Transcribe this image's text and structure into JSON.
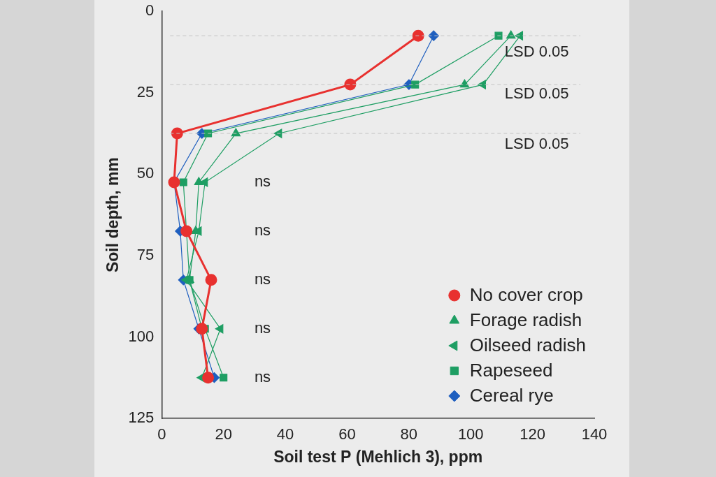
{
  "chart_data": {
    "type": "line",
    "x_label": "Soil test P (Mehlich 3), ppm",
    "y_label": "Soil depth, mm",
    "xlim": [
      0,
      140
    ],
    "xticks": [
      0,
      20,
      40,
      60,
      80,
      100,
      120,
      140
    ],
    "ylim": [
      0,
      125
    ],
    "yticks": [
      0,
      25,
      50,
      75,
      100,
      125
    ],
    "y_reversed": true,
    "grid": false,
    "legend": "lower right",
    "y": [
      7.5,
      22.5,
      37.5,
      52.5,
      67.5,
      82.5,
      97.5,
      112.5
    ],
    "series": [
      {
        "name": "No cover crop",
        "color": "#e8312f",
        "marker": "circle",
        "values": [
          83,
          61,
          5,
          4,
          8,
          16,
          13,
          15
        ]
      },
      {
        "name": "Forage radish",
        "color": "#1e9e63",
        "marker": "triangle",
        "values": [
          113,
          98,
          24,
          12,
          11,
          9,
          13,
          15
        ]
      },
      {
        "name": "Oilseed radish",
        "color": "#1e9e63",
        "marker": "triangle-left",
        "values": [
          116,
          104,
          38,
          14,
          12,
          8,
          19,
          13
        ]
      },
      {
        "name": "Rapeseed",
        "color": "#1e9e63",
        "marker": "square",
        "values": [
          109,
          82,
          15,
          7,
          8,
          9,
          14,
          20
        ]
      },
      {
        "name": "Cereal rye",
        "color": "#1f5fbf",
        "marker": "diamond",
        "values": [
          88,
          80,
          13,
          4,
          6,
          7,
          12,
          17
        ]
      }
    ],
    "hlines": [
      7.5,
      22.5,
      37.5
    ],
    "annotations": [
      {
        "text": "LSD 0.05",
        "x": 111,
        "y": 12.5
      },
      {
        "text": "LSD 0.05",
        "x": 111,
        "y": 25.5
      },
      {
        "text": "LSD 0.05",
        "x": 111,
        "y": 41
      },
      {
        "text": "ns",
        "x": 30,
        "y": 52.5
      },
      {
        "text": "ns",
        "x": 30,
        "y": 67.5
      },
      {
        "text": "ns",
        "x": 30,
        "y": 82.5
      },
      {
        "text": "ns",
        "x": 30,
        "y": 97.5
      },
      {
        "text": "ns",
        "x": 30,
        "y": 112.5
      }
    ]
  }
}
